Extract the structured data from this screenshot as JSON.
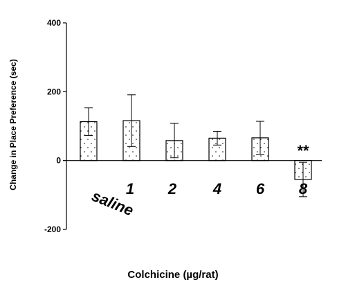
{
  "chart_data": {
    "type": "bar",
    "xlabel": "Colchicine (µg/rat)",
    "ylabel": "Change in Place Preference (sec)",
    "ylim": [
      -200,
      400
    ],
    "yticks": [
      400,
      200,
      0,
      -200
    ],
    "categories": [
      "saline",
      "1",
      "2",
      "4",
      "6",
      "8"
    ],
    "values": [
      113,
      116,
      58,
      65,
      66,
      -55
    ],
    "errors": [
      40,
      75,
      50,
      20,
      48,
      50
    ],
    "annotations": [
      {
        "category": "8",
        "text": "**"
      }
    ],
    "grid": false,
    "legend": "none",
    "bar_fill": "dotted"
  }
}
